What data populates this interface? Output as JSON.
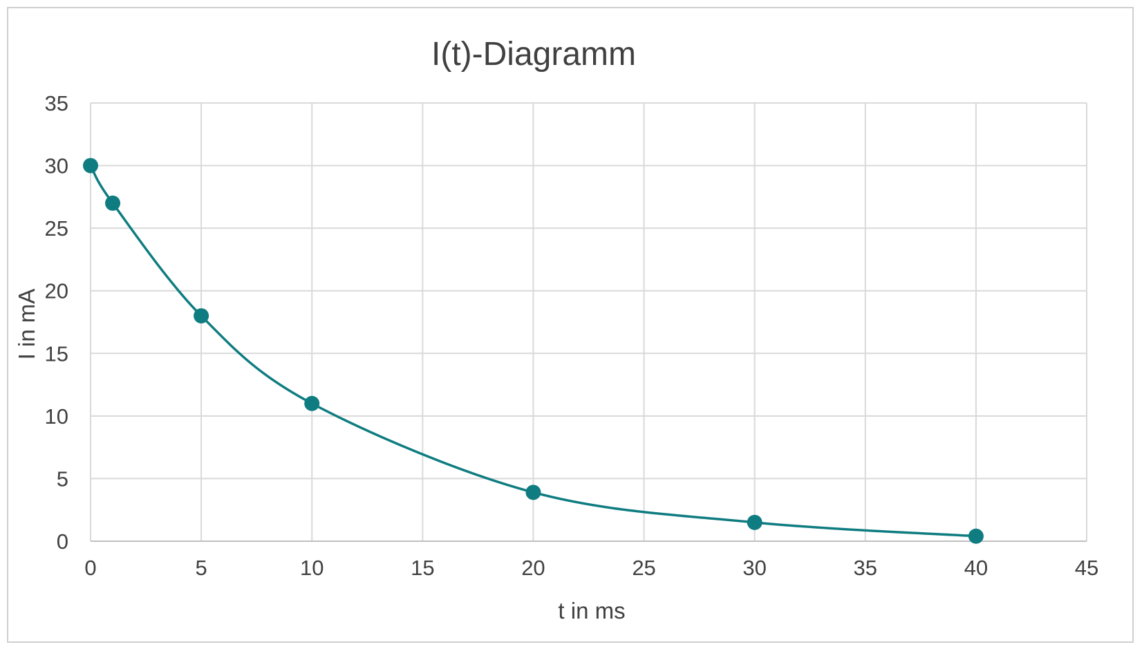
{
  "chart_data": {
    "type": "scatter",
    "title": "I(t)-Diagramm",
    "xlabel": "t in ms",
    "ylabel": "I in mA",
    "xlim": [
      0,
      45
    ],
    "ylim": [
      0,
      35
    ],
    "x_ticks": [
      "0",
      "5",
      "10",
      "15",
      "20",
      "25",
      "30",
      "35",
      "40",
      "45"
    ],
    "y_ticks": [
      "0",
      "5",
      "10",
      "15",
      "20",
      "25",
      "30",
      "35"
    ],
    "x_tick_values": [
      0,
      5,
      10,
      15,
      20,
      25,
      30,
      35,
      40,
      45
    ],
    "y_tick_values": [
      0,
      5,
      10,
      15,
      20,
      25,
      30,
      35
    ],
    "grid": true,
    "smooth_line": true,
    "legend": "none",
    "series": [
      {
        "color": "#0e7c80",
        "points": [
          {
            "x": 0,
            "y": 30
          },
          {
            "x": 1,
            "y": 27
          },
          {
            "x": 5,
            "y": 18
          },
          {
            "x": 10,
            "y": 11
          },
          {
            "x": 20,
            "y": 3.9
          },
          {
            "x": 30,
            "y": 1.5
          },
          {
            "x": 40,
            "y": 0.4
          }
        ]
      }
    ]
  }
}
